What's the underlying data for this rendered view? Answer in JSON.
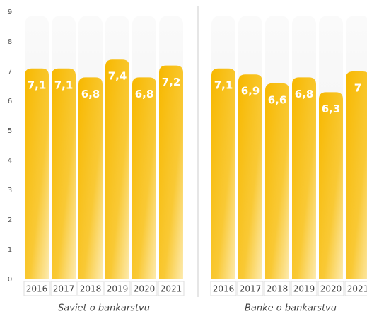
{
  "chart_data": [
    {
      "type": "bar",
      "title": "Saviet o bankarstvu",
      "categories": [
        "2016",
        "2017",
        "2018",
        "2019",
        "2020",
        "2021"
      ],
      "values": [
        7.1,
        7.1,
        6.8,
        7.4,
        6.8,
        7.2
      ],
      "value_labels": [
        "7,1",
        "7,1",
        "6,8",
        "7,4",
        "6,8",
        "7,2"
      ],
      "color": "#f5b400",
      "ylim": [
        0,
        9
      ],
      "yticks": [
        0,
        1,
        2,
        3,
        4,
        5,
        6,
        7,
        8,
        9
      ]
    },
    {
      "type": "bar",
      "title": "Banke o bankarstvu",
      "categories": [
        "2016",
        "2017",
        "2018",
        "2019",
        "2020",
        "2021"
      ],
      "values": [
        7.1,
        6.9,
        6.6,
        6.8,
        6.3,
        7
      ],
      "value_labels": [
        "7,1",
        "6,9",
        "6,6",
        "6,8",
        "6,3",
        "7"
      ],
      "color": "#f5b400",
      "ylim": [
        0,
        9
      ]
    }
  ]
}
